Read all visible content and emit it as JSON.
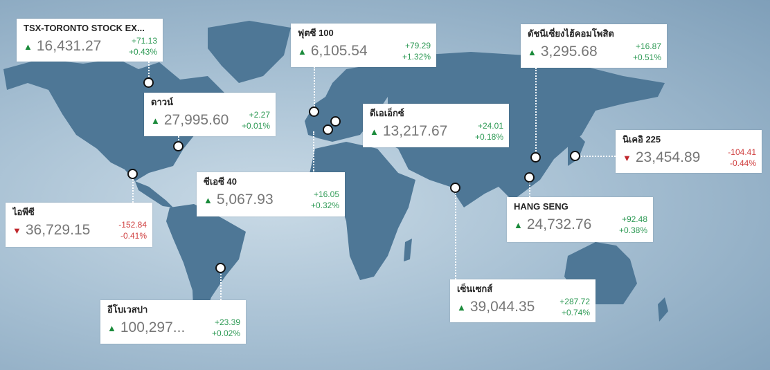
{
  "colors": {
    "up": "#1a8a3a",
    "down": "#c0282d",
    "land": "#4e7796"
  },
  "markets": [
    {
      "id": "tsx",
      "name": "TSX-TORONTO STOCK EX...",
      "value": "16,431.27",
      "change": "+71.13",
      "percent": "+0.43%",
      "direction": "up"
    },
    {
      "id": "dow",
      "name": "ดาวน์",
      "value": "27,995.60",
      "change": "+2.27",
      "percent": "+0.01%",
      "direction": "up"
    },
    {
      "id": "ftse",
      "name": "ฟุตซี 100",
      "value": "6,105.54",
      "change": "+79.29",
      "percent": "+1.32%",
      "direction": "up"
    },
    {
      "id": "dax",
      "name": "ดีเอเอ็กซ์",
      "value": "13,217.67",
      "change": "+24.01",
      "percent": "+0.18%",
      "direction": "up"
    },
    {
      "id": "sse",
      "name": "ดัชนีเซี่ยงไฮ้คอมโพสิต",
      "value": "3,295.68",
      "change": "+16.87",
      "percent": "+0.51%",
      "direction": "up"
    },
    {
      "id": "nikkei",
      "name": "นิเคอิ 225",
      "value": "23,454.89",
      "change": "-104.41",
      "percent": "-0.44%",
      "direction": "down"
    },
    {
      "id": "cac",
      "name": "ซีเอซี 40",
      "value": "5,067.93",
      "change": "+16.05",
      "percent": "+0.32%",
      "direction": "up"
    },
    {
      "id": "ipc",
      "name": "ไอพีซี",
      "value": "36,729.15",
      "change": "-152.84",
      "percent": "-0.41%",
      "direction": "down"
    },
    {
      "id": "hsi",
      "name": "HANG SENG",
      "value": "24,732.76",
      "change": "+92.48",
      "percent": "+0.38%",
      "direction": "up"
    },
    {
      "id": "sensex",
      "name": "เซ็นเซกส์",
      "value": "39,044.35",
      "change": "+287.72",
      "percent": "+0.74%",
      "direction": "up"
    },
    {
      "id": "bovespa",
      "name": "อีโบเวสปา",
      "value": "100,297...",
      "change": "+23.39",
      "percent": "+0.02%",
      "direction": "up"
    }
  ],
  "arrows": {
    "up": "▲",
    "down": "▼"
  }
}
